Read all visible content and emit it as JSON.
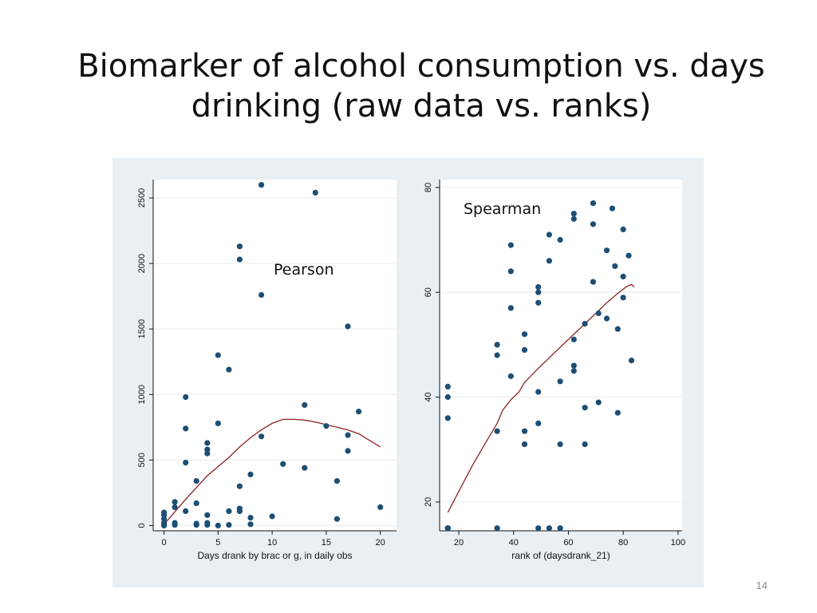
{
  "slide": {
    "title_line1": "Biomarker of alcohol consumption vs. days",
    "title_line2": "drinking (raw data vs. ranks)",
    "page_number": "14"
  },
  "chart_data": [
    {
      "type": "scatter",
      "annotation": "Pearson",
      "xlabel": "Days drank by brac or g, in daily obs",
      "ylabel": "",
      "xlim": [
        -1,
        21.5
      ],
      "ylim": [
        -40,
        2640
      ],
      "xticks": [
        0,
        5,
        10,
        15,
        20
      ],
      "yticks": [
        0,
        500,
        1000,
        1500,
        2000,
        2500
      ],
      "grid": true,
      "colors": {
        "point": "#1d4e74",
        "fit": "#8b2323",
        "plot_bg": "#ffffff",
        "grid": "#e6ecef"
      },
      "points": [
        [
          0,
          100
        ],
        [
          0,
          80
        ],
        [
          0,
          50
        ],
        [
          0,
          20
        ],
        [
          0,
          5
        ],
        [
          0,
          0
        ],
        [
          1,
          180
        ],
        [
          1,
          140
        ],
        [
          1,
          20
        ],
        [
          1,
          5
        ],
        [
          2,
          980
        ],
        [
          2,
          740
        ],
        [
          2,
          480
        ],
        [
          2,
          110
        ],
        [
          3,
          340
        ],
        [
          3,
          170
        ],
        [
          3,
          15
        ],
        [
          3,
          5
        ],
        [
          4,
          630
        ],
        [
          4,
          580
        ],
        [
          4,
          550
        ],
        [
          4,
          80
        ],
        [
          4,
          20
        ],
        [
          4,
          5
        ],
        [
          5,
          1300
        ],
        [
          5,
          780
        ],
        [
          5,
          0
        ],
        [
          6,
          1190
        ],
        [
          6,
          110
        ],
        [
          6,
          5
        ],
        [
          7,
          2130
        ],
        [
          7,
          2030
        ],
        [
          7,
          300
        ],
        [
          7,
          130
        ],
        [
          7,
          110
        ],
        [
          8,
          390
        ],
        [
          8,
          60
        ],
        [
          8,
          10
        ],
        [
          9,
          2600
        ],
        [
          9,
          1760
        ],
        [
          9,
          680
        ],
        [
          10,
          70
        ],
        [
          11,
          470
        ],
        [
          13,
          920
        ],
        [
          13,
          440
        ],
        [
          14,
          2540
        ],
        [
          15,
          760
        ],
        [
          16,
          340
        ],
        [
          16,
          50
        ],
        [
          17,
          1520
        ],
        [
          17,
          690
        ],
        [
          17,
          570
        ],
        [
          18,
          870
        ],
        [
          20,
          140
        ]
      ],
      "fit_line": [
        [
          0,
          10
        ],
        [
          2,
          200
        ],
        [
          4,
          380
        ],
        [
          6,
          520
        ],
        [
          7,
          600
        ],
        [
          8,
          670
        ],
        [
          9,
          730
        ],
        [
          10,
          780
        ],
        [
          11,
          810
        ],
        [
          12,
          810
        ],
        [
          13,
          805
        ],
        [
          14,
          790
        ],
        [
          15,
          770
        ],
        [
          16,
          750
        ],
        [
          17,
          730
        ],
        [
          18,
          700
        ],
        [
          19,
          650
        ],
        [
          20,
          600
        ]
      ]
    },
    {
      "type": "scatter",
      "annotation": "Spearman",
      "xlabel": "rank of (daysdrank_21)",
      "ylabel": "",
      "xlim": [
        13,
        101.5
      ],
      "ylim": [
        14.5,
        81.5
      ],
      "xticks": [
        20,
        40,
        60,
        80,
        100
      ],
      "yticks": [
        20,
        40,
        60,
        80
      ],
      "grid": true,
      "colors": {
        "point": "#1d4e74",
        "fit": "#8b2323",
        "plot_bg": "#ffffff",
        "grid": "#e6ecef"
      },
      "points": [
        [
          16,
          42
        ],
        [
          16,
          40
        ],
        [
          16,
          36
        ],
        [
          16,
          15
        ],
        [
          16,
          15
        ],
        [
          16,
          15
        ],
        [
          34,
          50
        ],
        [
          34,
          48
        ],
        [
          34,
          33.5
        ],
        [
          34,
          15
        ],
        [
          39,
          69
        ],
        [
          39,
          64
        ],
        [
          39,
          57
        ],
        [
          39,
          44
        ],
        [
          44,
          52
        ],
        [
          44,
          49
        ],
        [
          44,
          33.5
        ],
        [
          44,
          31
        ],
        [
          49,
          61
        ],
        [
          49,
          60
        ],
        [
          49,
          58
        ],
        [
          49,
          41
        ],
        [
          49,
          35
        ],
        [
          49,
          15
        ],
        [
          53,
          71
        ],
        [
          53,
          66
        ],
        [
          53,
          15
        ],
        [
          57,
          70
        ],
        [
          57,
          43
        ],
        [
          57,
          31
        ],
        [
          57,
          15
        ],
        [
          62,
          75
        ],
        [
          62,
          74
        ],
        [
          62,
          51
        ],
        [
          62,
          46
        ],
        [
          62,
          45
        ],
        [
          66,
          54
        ],
        [
          66,
          38
        ],
        [
          66,
          31
        ],
        [
          69,
          77
        ],
        [
          69,
          73
        ],
        [
          69,
          62
        ],
        [
          71,
          56
        ],
        [
          71,
          39
        ],
        [
          74,
          68
        ],
        [
          74,
          55
        ],
        [
          76,
          76
        ],
        [
          77,
          65
        ],
        [
          78,
          53
        ],
        [
          78,
          37
        ],
        [
          80,
          72
        ],
        [
          80,
          63
        ],
        [
          80,
          59
        ],
        [
          82,
          67
        ],
        [
          83,
          47
        ]
      ],
      "fit_line": [
        [
          16,
          18
        ],
        [
          20,
          22
        ],
        [
          25,
          27
        ],
        [
          30,
          31.5
        ],
        [
          34,
          35
        ],
        [
          36,
          37.5
        ],
        [
          39,
          39.5
        ],
        [
          42,
          41
        ],
        [
          44,
          42.8
        ],
        [
          49,
          45.5
        ],
        [
          53,
          47.5
        ],
        [
          57,
          49.5
        ],
        [
          62,
          52
        ],
        [
          66,
          54
        ],
        [
          70,
          56
        ],
        [
          74,
          58
        ],
        [
          78,
          59.8
        ],
        [
          81,
          61
        ],
        [
          83,
          61.5
        ],
        [
          84,
          61
        ]
      ]
    }
  ]
}
